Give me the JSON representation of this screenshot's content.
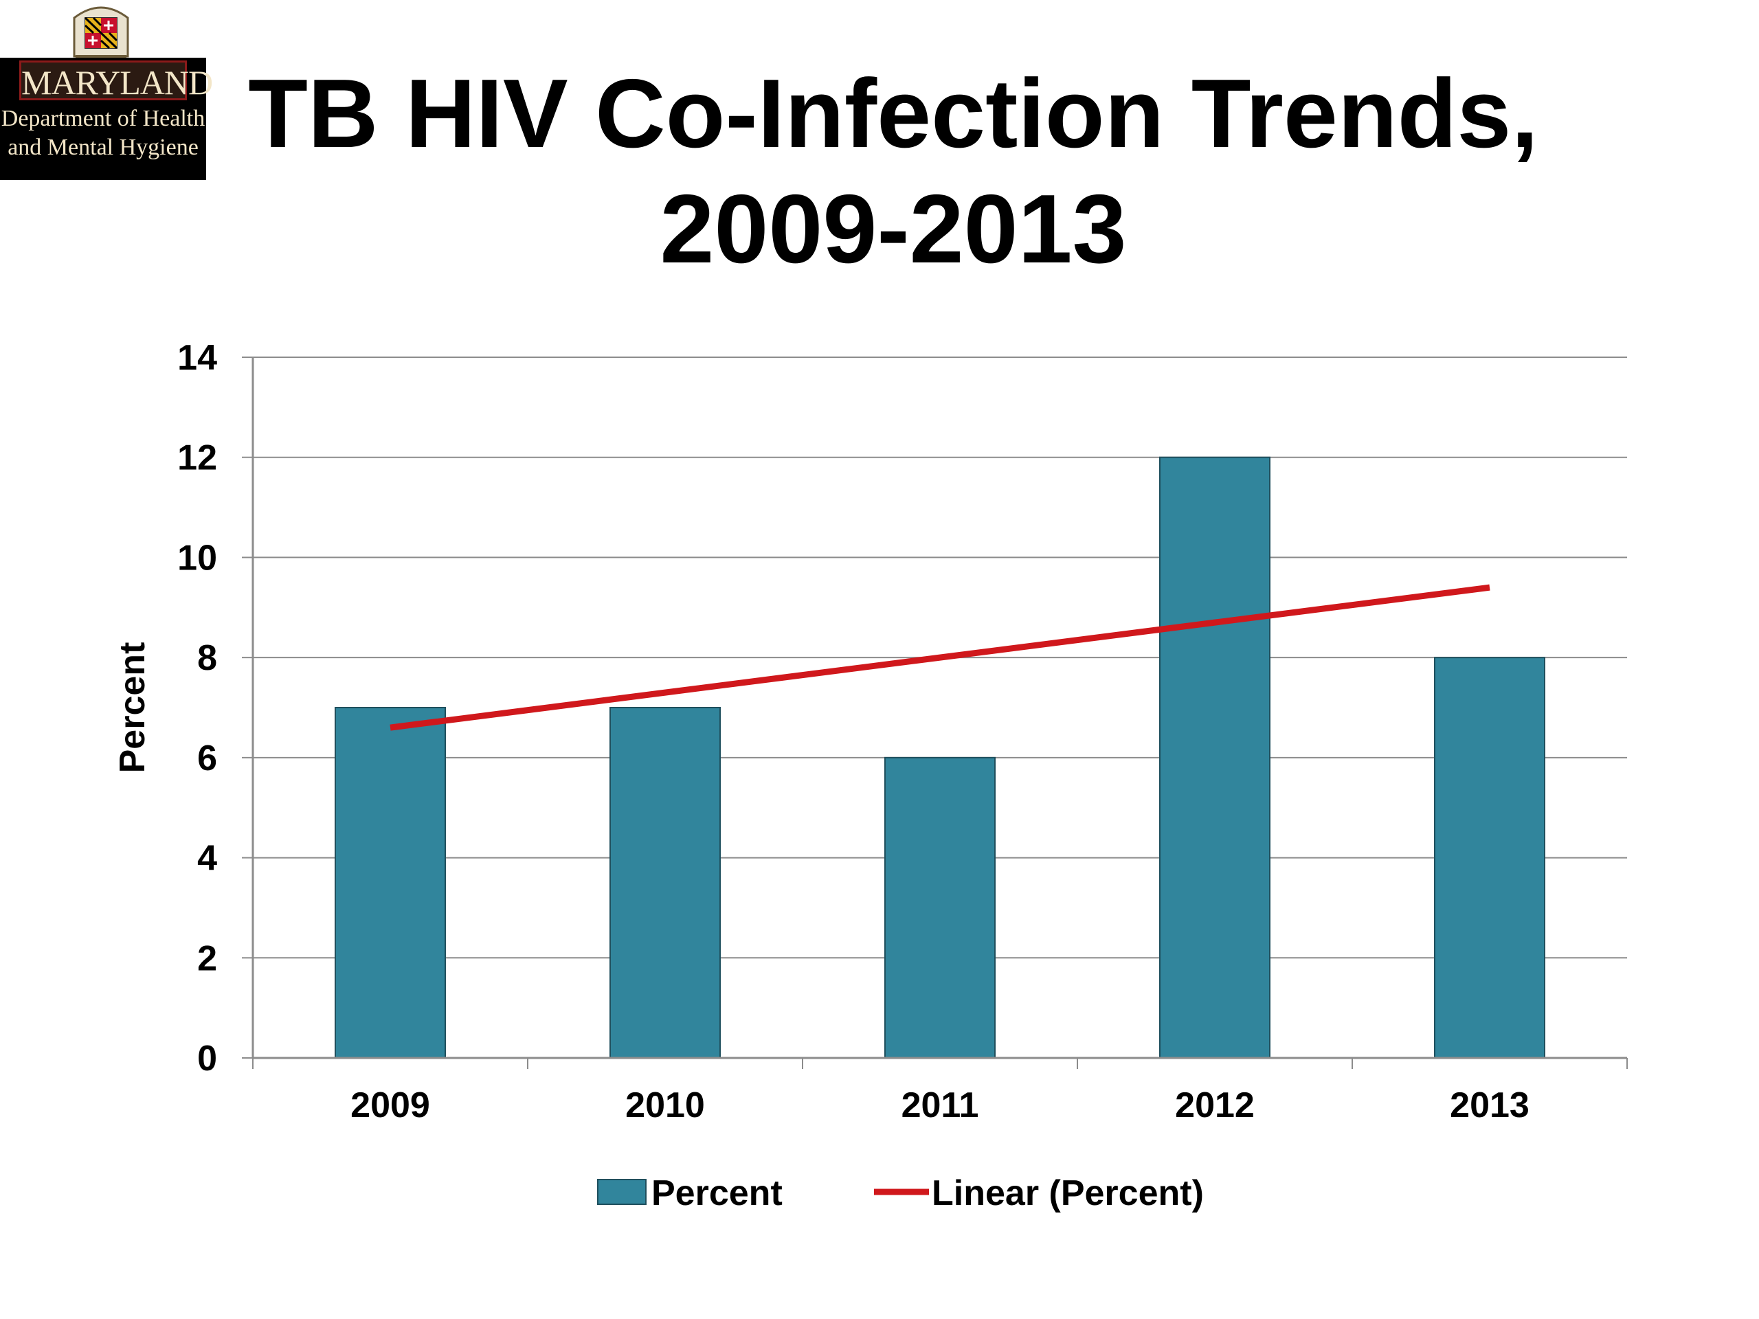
{
  "logo": {
    "name": "MARYLAND",
    "line1": "Department of Health",
    "line2": "and Mental Hygiene"
  },
  "slide": {
    "title_line1": "TB HIV Co-Infection Trends,",
    "title_line2": "2009-2013"
  },
  "chart_data": {
    "type": "bar",
    "categories": [
      "2009",
      "2010",
      "2011",
      "2012",
      "2013"
    ],
    "series": [
      {
        "name": "Percent",
        "type": "bar",
        "values": [
          7,
          7,
          6,
          12,
          8
        ],
        "color": "#31859c"
      },
      {
        "name": "Linear (Percent)",
        "type": "line",
        "values": [
          6.6,
          7.3,
          8.0,
          8.7,
          9.4
        ],
        "color": "#d0181c"
      }
    ],
    "xlabel": "",
    "ylabel": "Percent",
    "ylim": [
      0,
      14
    ],
    "yticks": [
      0,
      2,
      4,
      6,
      8,
      10,
      12,
      14
    ],
    "grid": true,
    "legend": "bottom"
  }
}
